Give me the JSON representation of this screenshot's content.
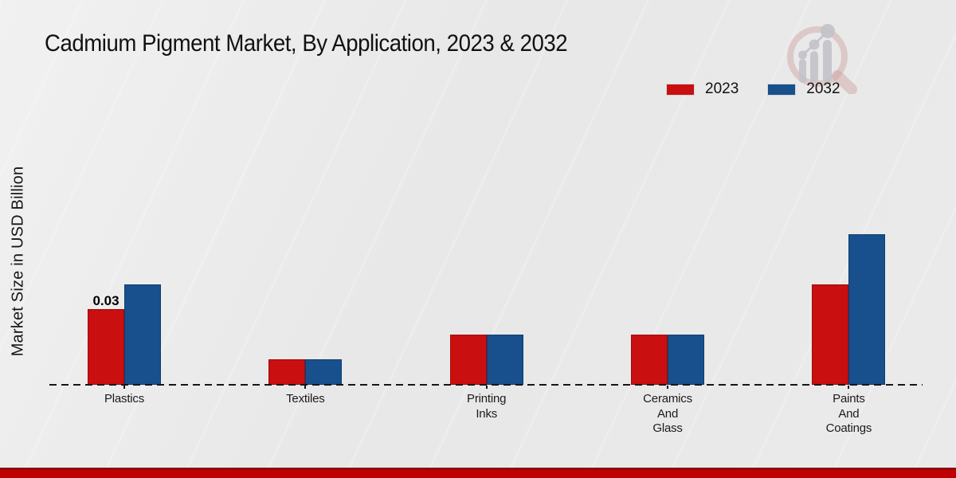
{
  "page": {
    "title": "Cadmium Pigment Market, By Application, 2023 & 2032"
  },
  "y_axis": {
    "label": "Market Size in USD Billion"
  },
  "legend": {
    "items": [
      {
        "label": "2023",
        "color": "#c90f10"
      },
      {
        "label": "2032",
        "color": "#17508c"
      }
    ]
  },
  "colors": {
    "series_2023_fill": "#c90f10",
    "series_2023_border": "#9f0b0b",
    "series_2032_fill": "#17508c",
    "series_2032_border": "#103d6e",
    "baseline": "#161616",
    "footer_stripe": "#c00000",
    "footer_stripe_edge": "#8e0b0b",
    "background": "#e9e9e9"
  },
  "icons": {
    "watermark": "magnifier-growth-chart-logo"
  },
  "chart_data": {
    "type": "bar",
    "title": "Cadmium Pigment Market, By Application, 2023 & 2032",
    "categories": [
      "Plastics",
      "Textiles",
      "Printing\nInks",
      "Ceramics\nAnd\nGlass",
      "Paints\nAnd\nCoatings"
    ],
    "series": [
      {
        "name": "2023",
        "color": "#c90f10",
        "border": "#9f0b0b",
        "values": [
          0.03,
          0.01,
          0.02,
          0.02,
          0.04
        ]
      },
      {
        "name": "2032",
        "color": "#17508c",
        "border": "#103d6e",
        "values": [
          0.04,
          0.01,
          0.02,
          0.02,
          0.06
        ]
      }
    ],
    "ylabel": "Market Size in USD Billion",
    "xlabel": "",
    "ylim": [
      0,
      0.07
    ],
    "grid": false,
    "legend_position": "top-right",
    "baseline_style": "dashed-zero-line",
    "annotations": [
      {
        "series": "2023",
        "category_index": 0,
        "text": "0.03"
      }
    ]
  }
}
